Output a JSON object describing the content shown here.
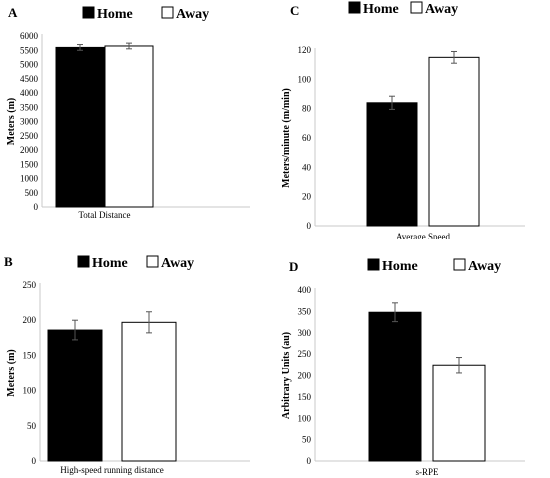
{
  "legend": {
    "home_label": "Home",
    "away_label": "Away"
  },
  "chart_data": [
    {
      "panel": "A",
      "type": "bar",
      "categories": [
        "Home",
        "Away"
      ],
      "values": [
        5600,
        5650
      ],
      "errors": [
        100,
        100
      ],
      "ylabel": "Meters (m)",
      "xlabel": "Total Distance",
      "ylim": [
        0,
        6000
      ],
      "yticks": [
        0,
        500,
        1000,
        1500,
        2000,
        2500,
        3000,
        3500,
        4000,
        4500,
        5000,
        5500,
        6000
      ],
      "colors": [
        "#000000",
        "#ffffff"
      ]
    },
    {
      "panel": "C",
      "type": "bar",
      "categories": [
        "Home",
        "Away"
      ],
      "values": [
        84,
        115
      ],
      "errors": [
        4.5,
        4
      ],
      "ylabel": "Meters/minute (m/min)",
      "xlabel": "Average Speed",
      "ylim": [
        0,
        120
      ],
      "yticks": [
        0,
        20,
        40,
        60,
        80,
        100,
        120
      ],
      "colors": [
        "#000000",
        "#ffffff"
      ]
    },
    {
      "panel": "B",
      "type": "bar",
      "categories": [
        "Home",
        "Away"
      ],
      "values": [
        186,
        197
      ],
      "errors": [
        14,
        15
      ],
      "ylabel": "Meters (m)",
      "xlabel": "High-speed running distance",
      "ylim": [
        0,
        250
      ],
      "yticks": [
        0,
        50,
        100,
        150,
        200,
        250
      ],
      "colors": [
        "#000000",
        "#ffffff"
      ]
    },
    {
      "panel": "D",
      "type": "bar",
      "categories": [
        "Home",
        "Away"
      ],
      "values": [
        348,
        224
      ],
      "errors": [
        22,
        18
      ],
      "ylabel": "Arbitrary Units (au)",
      "xlabel": "s-RPE",
      "ylim": [
        0,
        400
      ],
      "yticks": [
        0,
        50,
        100,
        150,
        200,
        250,
        300,
        350,
        400
      ],
      "colors": [
        "#000000",
        "#ffffff"
      ]
    }
  ]
}
